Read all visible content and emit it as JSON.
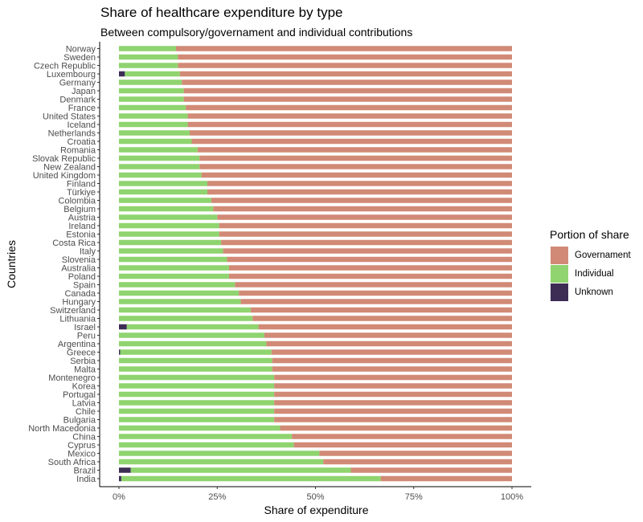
{
  "chart_data": {
    "type": "bar",
    "orientation": "horizontal",
    "stacked": true,
    "title": "Share of healthcare expenditure by type",
    "subtitle": "Between compulsory/governament and individual contributions",
    "xlabel": "Share of expenditure",
    "ylabel": "Countries",
    "xlim": [
      0,
      100
    ],
    "x_ticks": [
      "0%",
      "25%",
      "50%",
      "75%",
      "100%"
    ],
    "grid": false,
    "legend_title": "Portion of share",
    "legend_position": "right",
    "categories": [
      "Norway",
      "Sweden",
      "Czech Republic",
      "Luxembourg",
      "Germany",
      "Japan",
      "Denmark",
      "France",
      "United States",
      "Iceland",
      "Netherlands",
      "Croatia",
      "Romania",
      "Slovak Republic",
      "New Zealand",
      "United Kingdom",
      "Finland",
      "Türkiye",
      "Colombia",
      "Belgium",
      "Austria",
      "Ireland",
      "Estonia",
      "Costa Rica",
      "Italy",
      "Slovenia",
      "Australia",
      "Poland",
      "Spain",
      "Canada",
      "Hungary",
      "Switzerland",
      "Lithuania",
      "Israel",
      "Peru",
      "Argentina",
      "Greece",
      "Serbia",
      "Malta",
      "Montenegro",
      "Korea",
      "Portugal",
      "Latvia",
      "Chile",
      "Bulgaria",
      "North Macedonia",
      "China",
      "Cyprus",
      "Mexico",
      "South Africa",
      "Brazil",
      "India"
    ],
    "series": [
      {
        "name": "Unknown",
        "color": "#3d2d54",
        "values": [
          0,
          0,
          0,
          1.5,
          0,
          0,
          0,
          0,
          0,
          0,
          0,
          0,
          0,
          0,
          0,
          0,
          0,
          0,
          0,
          0,
          0,
          0,
          0,
          0,
          0,
          0,
          0,
          0,
          0,
          0,
          0,
          0,
          0,
          2,
          0,
          0,
          0.3,
          0,
          0,
          0,
          0,
          0,
          0,
          0,
          0,
          0,
          0,
          0,
          0,
          0,
          3,
          0.6
        ]
      },
      {
        "name": "Individual",
        "color": "#8fd46f",
        "values": [
          14.5,
          15,
          15,
          14,
          16,
          16.5,
          16.5,
          17,
          17.5,
          17.5,
          18,
          18.5,
          20,
          20.5,
          20.5,
          21,
          22.5,
          22.5,
          23.5,
          24,
          25,
          25.5,
          25.5,
          26,
          26.5,
          27.5,
          28,
          28,
          29.5,
          30.5,
          31,
          33.5,
          34,
          33.5,
          37,
          37.5,
          38.5,
          39,
          39,
          39.5,
          39.5,
          39.5,
          39.5,
          39.5,
          39.5,
          41,
          44,
          44.5,
          51,
          52,
          56,
          66
        ]
      },
      {
        "name": "Governament",
        "color": "#d18a76",
        "values": [
          85.5,
          85,
          85,
          84.5,
          84,
          83.5,
          83.5,
          83,
          82.5,
          82.5,
          82,
          81.5,
          80,
          79.5,
          79.5,
          79,
          77.5,
          77.5,
          76.5,
          76,
          75,
          74.5,
          74.5,
          74,
          73.5,
          72.5,
          72,
          72,
          70.5,
          69.5,
          69,
          66.5,
          66,
          64.5,
          63,
          62.5,
          61.2,
          61,
          61,
          60.5,
          60.5,
          60.5,
          60.5,
          60.5,
          60.5,
          59,
          56,
          55.5,
          49,
          48,
          41,
          33.4
        ]
      }
    ]
  },
  "legend": [
    {
      "label": "Governament",
      "color": "#d18a76"
    },
    {
      "label": "Individual",
      "color": "#8fd46f"
    },
    {
      "label": "Unknown",
      "color": "#3d2d54"
    }
  ]
}
